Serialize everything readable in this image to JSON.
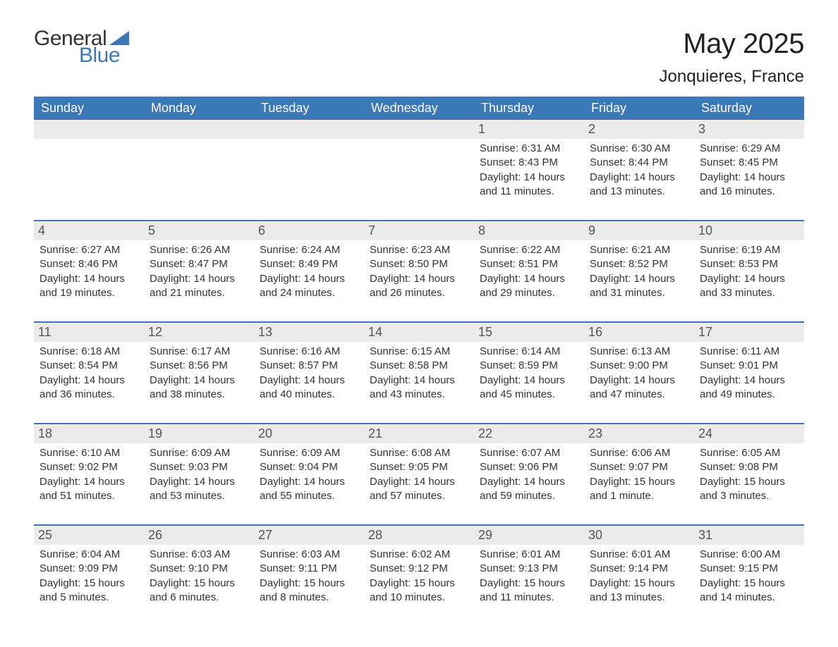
{
  "brand": {
    "line1": "General",
    "line2": "Blue",
    "color_text": "#333333",
    "color_accent": "#3a78b8"
  },
  "title": "May 2025",
  "location": "Jonquieres, France",
  "colors": {
    "header_bg": "#3a78b8",
    "header_text": "#ffffff",
    "daynum_bg": "#ebebeb",
    "daynum_text": "#555555",
    "body_text": "#333333",
    "page_bg": "#ffffff",
    "rule": "#3a78b8"
  },
  "fonts": {
    "title_size": 40,
    "location_size": 24,
    "weekday_size": 18,
    "daynum_size": 18,
    "body_size": 15
  },
  "weekdays": [
    "Sunday",
    "Monday",
    "Tuesday",
    "Wednesday",
    "Thursday",
    "Friday",
    "Saturday"
  ],
  "weeks": [
    [
      {
        "day": "",
        "sunrise": "",
        "sunset": "",
        "daylight": ""
      },
      {
        "day": "",
        "sunrise": "",
        "sunset": "",
        "daylight": ""
      },
      {
        "day": "",
        "sunrise": "",
        "sunset": "",
        "daylight": ""
      },
      {
        "day": "",
        "sunrise": "",
        "sunset": "",
        "daylight": ""
      },
      {
        "day": "1",
        "sunrise": "Sunrise: 6:31 AM",
        "sunset": "Sunset: 8:43 PM",
        "daylight": "Daylight: 14 hours and 11 minutes."
      },
      {
        "day": "2",
        "sunrise": "Sunrise: 6:30 AM",
        "sunset": "Sunset: 8:44 PM",
        "daylight": "Daylight: 14 hours and 13 minutes."
      },
      {
        "day": "3",
        "sunrise": "Sunrise: 6:29 AM",
        "sunset": "Sunset: 8:45 PM",
        "daylight": "Daylight: 14 hours and 16 minutes."
      }
    ],
    [
      {
        "day": "4",
        "sunrise": "Sunrise: 6:27 AM",
        "sunset": "Sunset: 8:46 PM",
        "daylight": "Daylight: 14 hours and 19 minutes."
      },
      {
        "day": "5",
        "sunrise": "Sunrise: 6:26 AM",
        "sunset": "Sunset: 8:47 PM",
        "daylight": "Daylight: 14 hours and 21 minutes."
      },
      {
        "day": "6",
        "sunrise": "Sunrise: 6:24 AM",
        "sunset": "Sunset: 8:49 PM",
        "daylight": "Daylight: 14 hours and 24 minutes."
      },
      {
        "day": "7",
        "sunrise": "Sunrise: 6:23 AM",
        "sunset": "Sunset: 8:50 PM",
        "daylight": "Daylight: 14 hours and 26 minutes."
      },
      {
        "day": "8",
        "sunrise": "Sunrise: 6:22 AM",
        "sunset": "Sunset: 8:51 PM",
        "daylight": "Daylight: 14 hours and 29 minutes."
      },
      {
        "day": "9",
        "sunrise": "Sunrise: 6:21 AM",
        "sunset": "Sunset: 8:52 PM",
        "daylight": "Daylight: 14 hours and 31 minutes."
      },
      {
        "day": "10",
        "sunrise": "Sunrise: 6:19 AM",
        "sunset": "Sunset: 8:53 PM",
        "daylight": "Daylight: 14 hours and 33 minutes."
      }
    ],
    [
      {
        "day": "11",
        "sunrise": "Sunrise: 6:18 AM",
        "sunset": "Sunset: 8:54 PM",
        "daylight": "Daylight: 14 hours and 36 minutes."
      },
      {
        "day": "12",
        "sunrise": "Sunrise: 6:17 AM",
        "sunset": "Sunset: 8:56 PM",
        "daylight": "Daylight: 14 hours and 38 minutes."
      },
      {
        "day": "13",
        "sunrise": "Sunrise: 6:16 AM",
        "sunset": "Sunset: 8:57 PM",
        "daylight": "Daylight: 14 hours and 40 minutes."
      },
      {
        "day": "14",
        "sunrise": "Sunrise: 6:15 AM",
        "sunset": "Sunset: 8:58 PM",
        "daylight": "Daylight: 14 hours and 43 minutes."
      },
      {
        "day": "15",
        "sunrise": "Sunrise: 6:14 AM",
        "sunset": "Sunset: 8:59 PM",
        "daylight": "Daylight: 14 hours and 45 minutes."
      },
      {
        "day": "16",
        "sunrise": "Sunrise: 6:13 AM",
        "sunset": "Sunset: 9:00 PM",
        "daylight": "Daylight: 14 hours and 47 minutes."
      },
      {
        "day": "17",
        "sunrise": "Sunrise: 6:11 AM",
        "sunset": "Sunset: 9:01 PM",
        "daylight": "Daylight: 14 hours and 49 minutes."
      }
    ],
    [
      {
        "day": "18",
        "sunrise": "Sunrise: 6:10 AM",
        "sunset": "Sunset: 9:02 PM",
        "daylight": "Daylight: 14 hours and 51 minutes."
      },
      {
        "day": "19",
        "sunrise": "Sunrise: 6:09 AM",
        "sunset": "Sunset: 9:03 PM",
        "daylight": "Daylight: 14 hours and 53 minutes."
      },
      {
        "day": "20",
        "sunrise": "Sunrise: 6:09 AM",
        "sunset": "Sunset: 9:04 PM",
        "daylight": "Daylight: 14 hours and 55 minutes."
      },
      {
        "day": "21",
        "sunrise": "Sunrise: 6:08 AM",
        "sunset": "Sunset: 9:05 PM",
        "daylight": "Daylight: 14 hours and 57 minutes."
      },
      {
        "day": "22",
        "sunrise": "Sunrise: 6:07 AM",
        "sunset": "Sunset: 9:06 PM",
        "daylight": "Daylight: 14 hours and 59 minutes."
      },
      {
        "day": "23",
        "sunrise": "Sunrise: 6:06 AM",
        "sunset": "Sunset: 9:07 PM",
        "daylight": "Daylight: 15 hours and 1 minute."
      },
      {
        "day": "24",
        "sunrise": "Sunrise: 6:05 AM",
        "sunset": "Sunset: 9:08 PM",
        "daylight": "Daylight: 15 hours and 3 minutes."
      }
    ],
    [
      {
        "day": "25",
        "sunrise": "Sunrise: 6:04 AM",
        "sunset": "Sunset: 9:09 PM",
        "daylight": "Daylight: 15 hours and 5 minutes."
      },
      {
        "day": "26",
        "sunrise": "Sunrise: 6:03 AM",
        "sunset": "Sunset: 9:10 PM",
        "daylight": "Daylight: 15 hours and 6 minutes."
      },
      {
        "day": "27",
        "sunrise": "Sunrise: 6:03 AM",
        "sunset": "Sunset: 9:11 PM",
        "daylight": "Daylight: 15 hours and 8 minutes."
      },
      {
        "day": "28",
        "sunrise": "Sunrise: 6:02 AM",
        "sunset": "Sunset: 9:12 PM",
        "daylight": "Daylight: 15 hours and 10 minutes."
      },
      {
        "day": "29",
        "sunrise": "Sunrise: 6:01 AM",
        "sunset": "Sunset: 9:13 PM",
        "daylight": "Daylight: 15 hours and 11 minutes."
      },
      {
        "day": "30",
        "sunrise": "Sunrise: 6:01 AM",
        "sunset": "Sunset: 9:14 PM",
        "daylight": "Daylight: 15 hours and 13 minutes."
      },
      {
        "day": "31",
        "sunrise": "Sunrise: 6:00 AM",
        "sunset": "Sunset: 9:15 PM",
        "daylight": "Daylight: 15 hours and 14 minutes."
      }
    ]
  ]
}
